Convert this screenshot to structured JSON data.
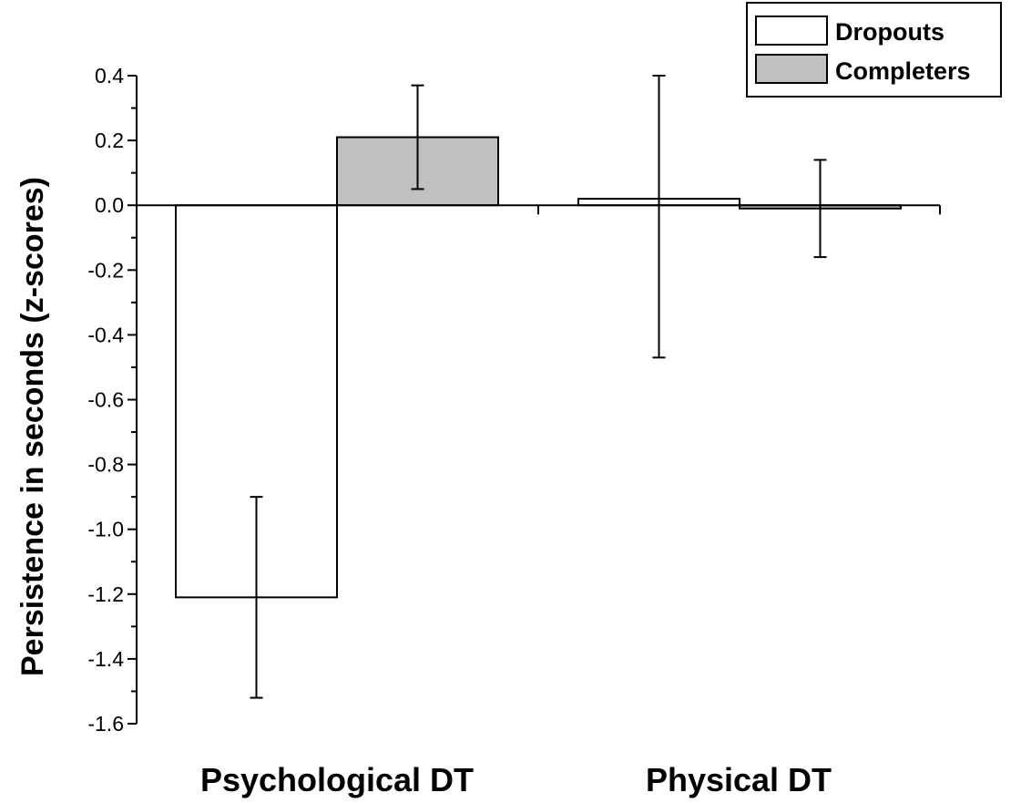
{
  "chart_data": {
    "type": "bar",
    "title": "",
    "xlabel": "",
    "ylabel": "Persistence in seconds (z-scores)",
    "ylim": [
      -1.6,
      0.4
    ],
    "yticks": [
      0.4,
      0.2,
      0.0,
      -0.2,
      -0.4,
      -0.6,
      -0.8,
      -1.0,
      -1.2,
      -1.4,
      -1.6
    ],
    "ytick_labels": [
      "0.4",
      "0.2",
      "0.0",
      "-0.2",
      "-0.4",
      "-0.6",
      "-0.8",
      "-1.0",
      "-1.2",
      "-1.4",
      "-1.6"
    ],
    "categories": [
      "Psychological DT",
      "Physical DT"
    ],
    "series": [
      {
        "name": "Dropouts",
        "color": "#ffffff",
        "values": [
          -1.21,
          0.02
        ],
        "error_low": [
          -1.52,
          -0.47
        ],
        "error_high": [
          -0.9,
          0.4
        ]
      },
      {
        "name": "Completers",
        "color": "#c0c0c0",
        "values": [
          0.21,
          -0.01
        ],
        "error_low": [
          0.05,
          -0.16
        ],
        "error_high": [
          0.37,
          0.14
        ]
      }
    ],
    "legend_position": "top-right",
    "grid": false
  }
}
